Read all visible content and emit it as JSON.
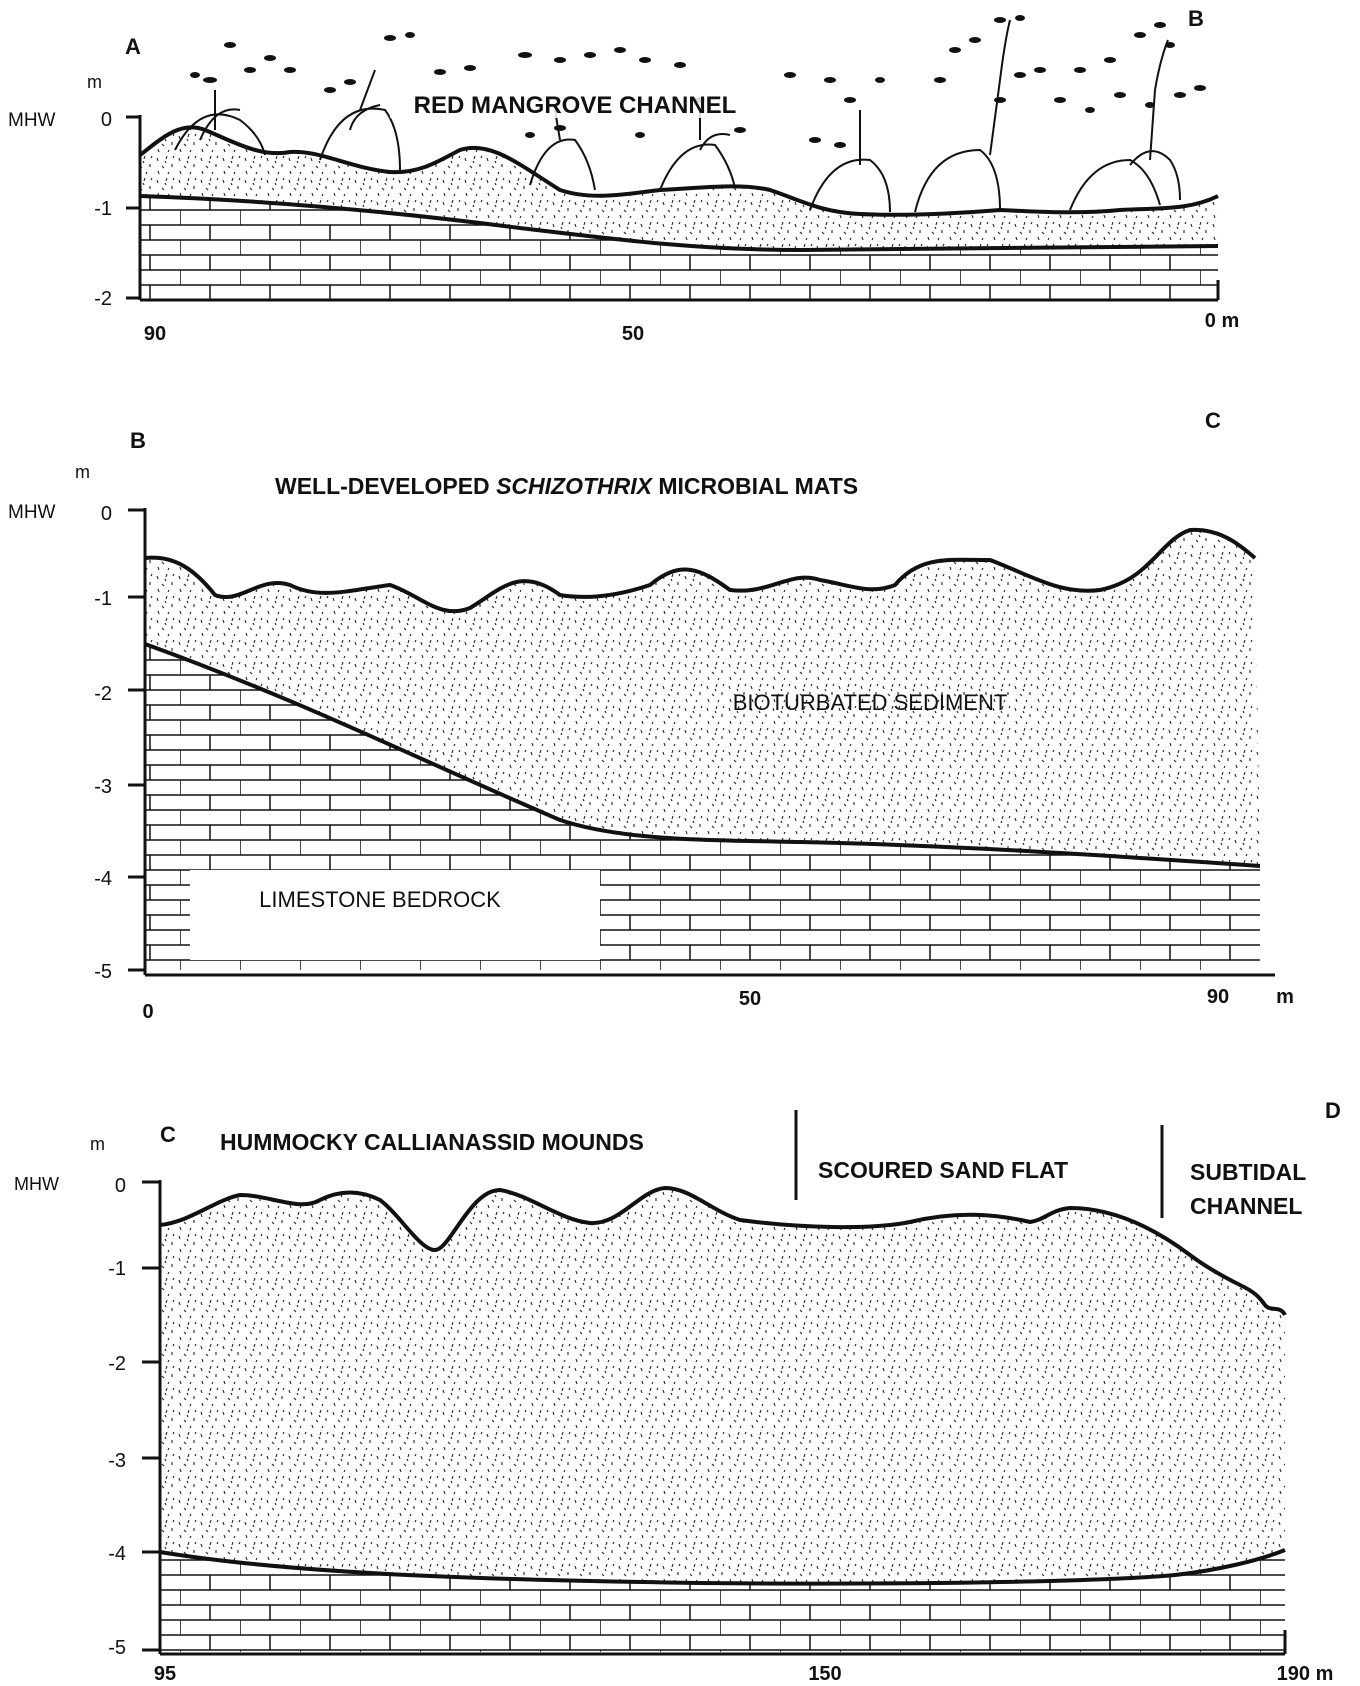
{
  "panels": [
    {
      "corner_left": "A",
      "corner_right": "B",
      "unit": "m",
      "datum": "MHW",
      "title": "RED MANGROVE CHANNEL",
      "y_ticks": [
        "0",
        "-1",
        "-2"
      ],
      "x_ticks": [
        "90",
        "50",
        "0 m"
      ]
    },
    {
      "corner_left": "B",
      "corner_right": "C",
      "unit": "m",
      "datum": "MHW",
      "title_pre": "WELL-DEVELOPED ",
      "title_em": "SCHIZOTHRIX",
      "title_post": " MICROBIAL MATS",
      "sediment_label": "BIOTURBATED SEDIMENT",
      "bedrock_label": "LIMESTONE BEDROCK",
      "y_ticks": [
        "0",
        "-1",
        "-2",
        "-3",
        "-4",
        "-5"
      ],
      "x_ticks": [
        "0",
        "50",
        "90"
      ],
      "x_unit": "m"
    },
    {
      "corner_left": "C",
      "corner_right": "D",
      "unit": "m",
      "datum": "MHW",
      "zone_1": "HUMMOCKY CALLIANASSID MOUNDS",
      "zone_2": "SCOURED SAND FLAT",
      "zone_3_line1": "SUBTIDAL",
      "zone_3_line2": "CHANNEL",
      "y_ticks": [
        "0",
        "-1",
        "-2",
        "-3",
        "-4",
        "-5"
      ],
      "x_ticks": [
        "95",
        "150",
        "190 m"
      ]
    }
  ]
}
